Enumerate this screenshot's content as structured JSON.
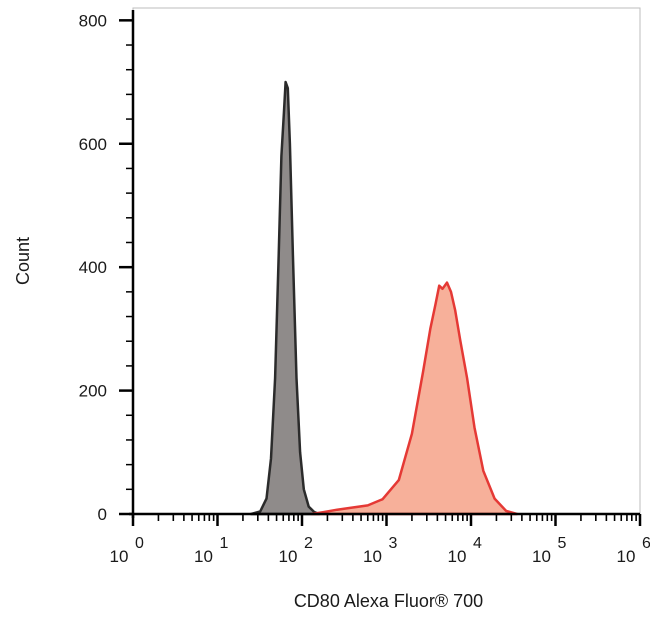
{
  "chart_data": {
    "type": "area",
    "title": "",
    "xlabel": "CD80 Alexa Fluor® 700",
    "ylabel": "Count",
    "xscale": "log",
    "xlim": [
      1,
      1000000
    ],
    "ylim": [
      0,
      820
    ],
    "y_ticks": [
      {
        "value": 0,
        "label": "0"
      },
      {
        "value": 200,
        "label": "200"
      },
      {
        "value": 400,
        "label": "400"
      },
      {
        "value": 600,
        "label": "600"
      },
      {
        "value": 800,
        "label": "800"
      }
    ],
    "x_ticks": [
      {
        "value": 1,
        "base": "10",
        "exp": "0"
      },
      {
        "value": 10,
        "base": "10",
        "exp": "1"
      },
      {
        "value": 100,
        "base": "10",
        "exp": "2"
      },
      {
        "value": 1000,
        "base": "10",
        "exp": "3"
      },
      {
        "value": 10000,
        "base": "10",
        "exp": "4"
      },
      {
        "value": 100000,
        "base": "10",
        "exp": "5"
      },
      {
        "value": 1000000,
        "base": "10",
        "exp": "6"
      }
    ],
    "grid": false,
    "legend": "none",
    "series": [
      {
        "fill": "#8f8b8a",
        "stroke": "#2b2b2b",
        "points": [
          [
            25,
            0
          ],
          [
            32,
            4
          ],
          [
            38,
            25
          ],
          [
            43,
            90
          ],
          [
            48,
            220
          ],
          [
            53,
            420
          ],
          [
            57,
            580
          ],
          [
            61,
            650
          ],
          [
            64,
            700
          ],
          [
            68,
            690
          ],
          [
            72,
            600
          ],
          [
            78,
            420
          ],
          [
            86,
            220
          ],
          [
            95,
            100
          ],
          [
            105,
            40
          ],
          [
            120,
            12
          ],
          [
            140,
            3
          ],
          [
            160,
            0
          ]
        ]
      },
      {
        "fill": "#f7b09a",
        "stroke": "#e53935",
        "points": [
          [
            130,
            0
          ],
          [
            180,
            3
          ],
          [
            260,
            7
          ],
          [
            380,
            10
          ],
          [
            600,
            14
          ],
          [
            900,
            24
          ],
          [
            1400,
            55
          ],
          [
            2000,
            130
          ],
          [
            2700,
            230
          ],
          [
            3300,
            300
          ],
          [
            3800,
            340
          ],
          [
            4200,
            370
          ],
          [
            4600,
            365
          ],
          [
            5200,
            375
          ],
          [
            5800,
            360
          ],
          [
            6500,
            330
          ],
          [
            7500,
            280
          ],
          [
            9000,
            220
          ],
          [
            11000,
            140
          ],
          [
            14000,
            70
          ],
          [
            19000,
            25
          ],
          [
            26000,
            5
          ],
          [
            35000,
            0
          ]
        ]
      }
    ]
  }
}
